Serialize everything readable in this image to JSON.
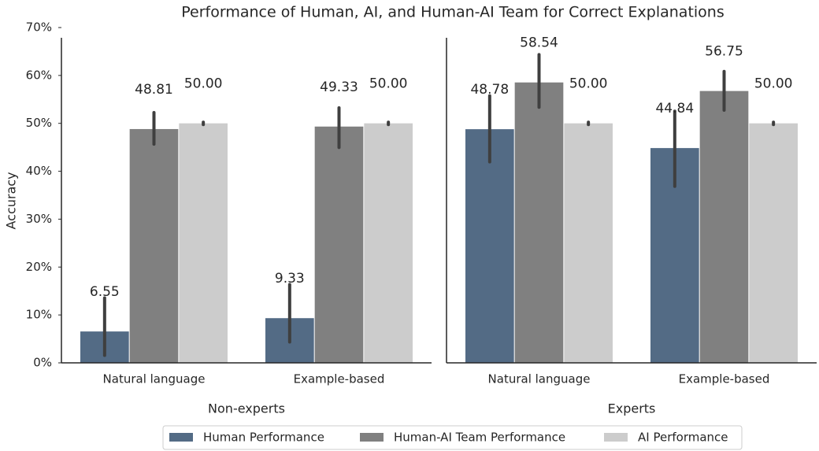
{
  "chart_data": [
    {
      "type": "bar",
      "title": "Performance of Human, AI, and Human-AI Team for Correct Explanations",
      "xlabel": "Non-experts",
      "ylabel": "Accuracy",
      "categories": [
        "Natural language",
        "Example-based"
      ],
      "series": [
        {
          "name": "Human Performance",
          "color": "#536b85",
          "values": [
            6.55,
            9.33
          ],
          "value_labels": [
            "6.55",
            "9.33"
          ],
          "ci": [
            [
              1.8,
              13.3
            ],
            [
              4.6,
              16.1
            ]
          ]
        },
        {
          "name": "Human-AI Team Performance",
          "color": "#808080",
          "values": [
            48.81,
            49.33
          ],
          "value_labels": [
            "48.81",
            "49.33"
          ],
          "ci": [
            [
              45.9,
              52.0
            ],
            [
              45.2,
              53.0
            ]
          ]
        },
        {
          "name": "AI Performance",
          "color": "#cccccc",
          "values": [
            50,
            50
          ],
          "value_labels": [
            "50.00",
            "50.00"
          ],
          "ci": [
            [
              50,
              50
            ],
            [
              50,
              50
            ]
          ]
        }
      ],
      "ylim": [
        0,
        70
      ],
      "yticks": [
        {
          "value": 0,
          "label": "0%"
        },
        {
          "value": 10,
          "label": "10%"
        },
        {
          "value": 20,
          "label": "20%"
        },
        {
          "value": 30,
          "label": "30%"
        },
        {
          "value": 40,
          "label": "40%"
        },
        {
          "value": 50,
          "label": "50%"
        },
        {
          "value": 60,
          "label": "60%"
        },
        {
          "value": 70,
          "label": "70%"
        }
      ],
      "legend": "bottom"
    },
    {
      "type": "bar",
      "xlabel": "Experts",
      "categories": [
        "Natural language",
        "Example-based"
      ],
      "series": [
        {
          "name": "Human Performance",
          "color": "#536b85",
          "values": [
            48.78,
            44.84
          ],
          "value_labels": [
            "48.78",
            "44.84"
          ],
          "ci": [
            [
              42.2,
              55.5
            ],
            [
              37.1,
              52.3
            ]
          ]
        },
        {
          "name": "Human-AI Team Performance",
          "color": "#808080",
          "values": [
            58.54,
            56.75
          ],
          "value_labels": [
            "58.54",
            "56.75"
          ],
          "ci": [
            [
              53.6,
              64.1
            ],
            [
              53.0,
              60.6
            ]
          ]
        },
        {
          "name": "AI Performance",
          "color": "#cccccc",
          "values": [
            50,
            50
          ],
          "value_labels": [
            "50.00",
            "50.00"
          ],
          "ci": [
            [
              50,
              50
            ],
            [
              50,
              50
            ]
          ]
        }
      ],
      "ylim": [
        0,
        70
      ]
    }
  ]
}
